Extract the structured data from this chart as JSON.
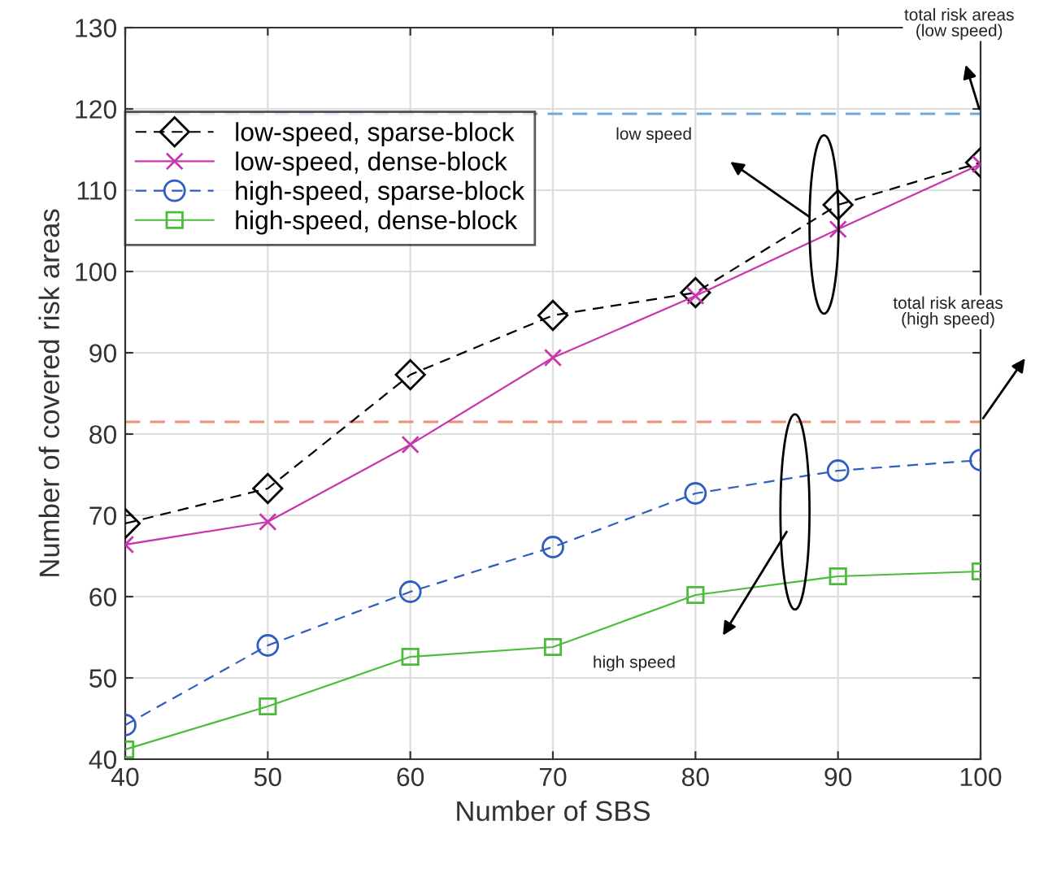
{
  "chart_data": {
    "type": "line",
    "xlabel": "Number of SBS",
    "ylabel": "Number of covered risk areas",
    "x": [
      40,
      50,
      60,
      70,
      80,
      90,
      100
    ],
    "xlim": [
      40,
      100
    ],
    "xticks": [
      40,
      50,
      60,
      70,
      80,
      90,
      100
    ],
    "ylim": [
      40,
      130
    ],
    "yticks": [
      40,
      50,
      60,
      70,
      80,
      90,
      100,
      110,
      120,
      130
    ],
    "grid": true,
    "legend": "top left",
    "series": [
      {
        "name": "low-speed, sparse-block",
        "color": "#000000",
        "marker": "diamond",
        "line_style": "dashed",
        "values": [
          69,
          73.3,
          87.3,
          94.6,
          97.4,
          108.2,
          113.4
        ]
      },
      {
        "name": "low-speed, dense-block",
        "color": "#c837ab",
        "marker": "cross",
        "line_style": "solid",
        "values": [
          66.4,
          69.2,
          78.7,
          89.4,
          97,
          105.2,
          113.2
        ]
      },
      {
        "name": "high-speed, sparse-block",
        "color": "#2e5ebf",
        "marker": "circle",
        "line_style": "dashed",
        "values": [
          44.2,
          54,
          60.6,
          66.1,
          72.7,
          75.5,
          76.8
        ]
      },
      {
        "name": "high-speed, dense-block",
        "color": "#4cbb3c",
        "marker": "square",
        "line_style": "solid",
        "values": [
          41.2,
          46.5,
          52.6,
          53.8,
          60.2,
          62.5,
          63.1
        ]
      }
    ],
    "ref_lines": [
      {
        "axis": "y",
        "value": 119.4,
        "color": "#6fa8dc",
        "line_style": "dashed"
      },
      {
        "axis": "y",
        "value": 81.5,
        "color": "#f08e78",
        "line_style": "dashed"
      }
    ],
    "annotations": [
      "low speed",
      "high speed",
      "total risk areas\n(low speed)",
      "total risk areas\n(high speed)"
    ]
  }
}
